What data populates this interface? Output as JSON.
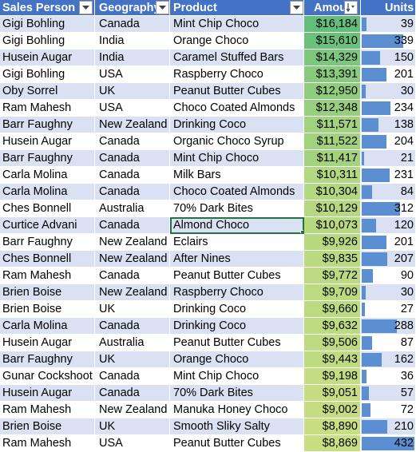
{
  "headers": [
    "Sales Person",
    "Geography",
    "Product",
    "Amount",
    "Units"
  ],
  "accent_color": "#4472C4",
  "selected_cell": {
    "row": 12,
    "column": "Product"
  },
  "rows": [
    {
      "person": "Gigi Bohling",
      "geo": "Canada",
      "product": "Mint Chip Choco",
      "amount": "$16,184",
      "units": "39"
    },
    {
      "person": "Gigi Bohling",
      "geo": "India",
      "product": "Orange Choco",
      "amount": "$15,610",
      "units": "339"
    },
    {
      "person": "Husein Augar",
      "geo": "India",
      "product": "Caramel Stuffed Bars",
      "amount": "$14,329",
      "units": "150"
    },
    {
      "person": "Gigi Bohling",
      "geo": "USA",
      "product": "Raspberry Choco",
      "amount": "$13,391",
      "units": "201"
    },
    {
      "person": "Oby Sorrel",
      "geo": "UK",
      "product": "Peanut Butter Cubes",
      "amount": "$12,950",
      "units": "30"
    },
    {
      "person": "Ram Mahesh",
      "geo": "USA",
      "product": "Choco Coated Almonds",
      "amount": "$12,348",
      "units": "234"
    },
    {
      "person": "Barr Faughny",
      "geo": "New Zealand",
      "product": "Drinking Coco",
      "amount": "$11,571",
      "units": "138"
    },
    {
      "person": "Husein Augar",
      "geo": "Canada",
      "product": "Organic Choco Syrup",
      "amount": "$11,522",
      "units": "204"
    },
    {
      "person": "Barr Faughny",
      "geo": "Canada",
      "product": "Mint Chip Choco",
      "amount": "$11,417",
      "units": "21"
    },
    {
      "person": "Carla Molina",
      "geo": "Canada",
      "product": "Milk Bars",
      "amount": "$10,311",
      "units": "231"
    },
    {
      "person": "Carla Molina",
      "geo": "Canada",
      "product": "Choco Coated Almonds",
      "amount": "$10,304",
      "units": "84"
    },
    {
      "person": "Ches Bonnell",
      "geo": "Australia",
      "product": "70% Dark Bites",
      "amount": "$10,129",
      "units": "312"
    },
    {
      "person": "Curtice Advani",
      "geo": "Canada",
      "product": "Almond Choco",
      "amount": "$10,073",
      "units": "120"
    },
    {
      "person": "Barr Faughny",
      "geo": "New Zealand",
      "product": "Eclairs",
      "amount": "$9,926",
      "units": "201"
    },
    {
      "person": "Ches Bonnell",
      "geo": "New Zealand",
      "product": "After Nines",
      "amount": "$9,835",
      "units": "207"
    },
    {
      "person": "Ram Mahesh",
      "geo": "Canada",
      "product": "Peanut Butter Cubes",
      "amount": "$9,772",
      "units": "90"
    },
    {
      "person": "Brien Boise",
      "geo": "New Zealand",
      "product": "Raspberry Choco",
      "amount": "$9,709",
      "units": "30"
    },
    {
      "person": "Brien Boise",
      "geo": "UK",
      "product": "Drinking Coco",
      "amount": "$9,660",
      "units": "27"
    },
    {
      "person": "Carla Molina",
      "geo": "Canada",
      "product": "Drinking Coco",
      "amount": "$9,632",
      "units": "288"
    },
    {
      "person": "Husein Augar",
      "geo": "Australia",
      "product": "Peanut Butter Cubes",
      "amount": "$9,506",
      "units": "87"
    },
    {
      "person": "Barr Faughny",
      "geo": "UK",
      "product": "Orange Choco",
      "amount": "$9,443",
      "units": "162"
    },
    {
      "person": "Gunar Cockshoot",
      "geo": "Canada",
      "product": "Mint Chip Choco",
      "amount": "$9,198",
      "units": "36"
    },
    {
      "person": "Husein Augar",
      "geo": "Canada",
      "product": "70% Dark Bites",
      "amount": "$9,051",
      "units": "57"
    },
    {
      "person": "Ram Mahesh",
      "geo": "New Zealand",
      "product": "Manuka Honey Choco",
      "amount": "$9,002",
      "units": "72"
    },
    {
      "person": "Brien Boise",
      "geo": "UK",
      "product": "Smooth Sliky Salty",
      "amount": "$8,890",
      "units": "210"
    },
    {
      "person": "Ram Mahesh",
      "geo": "USA",
      "product": "Peanut Butter Cubes",
      "amount": "$8,869",
      "units": "432"
    }
  ]
}
